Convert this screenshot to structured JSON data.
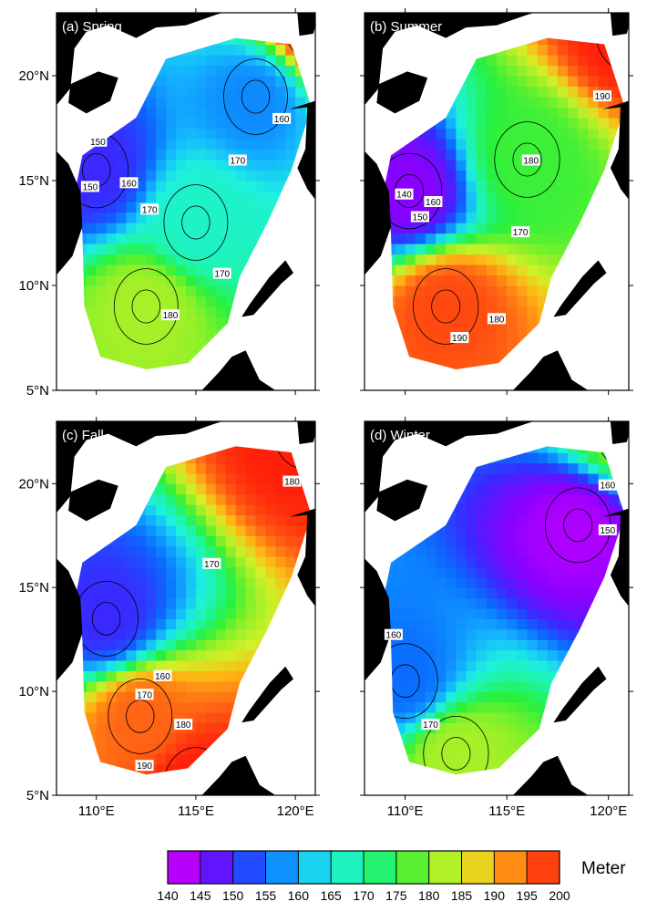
{
  "figure": {
    "units": "Meter",
    "lon_ticks": [
      "110°E",
      "115°E",
      "120°E"
    ],
    "lat_ticks": [
      "20°N",
      "15°N",
      "10°N",
      "5°N"
    ],
    "lon_range": [
      108,
      121
    ],
    "lat_range": [
      5,
      23
    ],
    "colors": {
      "land": "#000000",
      "background": "#ffffff",
      "contour": "#000000"
    }
  },
  "chart_data": {
    "type": "heatmap",
    "x_unit": "degrees east longitude",
    "y_unit": "degrees north latitude",
    "colorbar": {
      "ticks": [
        140,
        145,
        150,
        155,
        160,
        165,
        170,
        175,
        180,
        185,
        190,
        195,
        200
      ],
      "range": [
        140,
        200
      ],
      "label": "Meter",
      "colors": [
        "#e600ff",
        "#8a00ff",
        "#3a28ff",
        "#0a6cff",
        "#14b4ff",
        "#1ef0e0",
        "#1ef5a0",
        "#28f03c",
        "#8cf028",
        "#d2f028",
        "#ffb414",
        "#ff6414",
        "#ff1e0a"
      ]
    },
    "panels": [
      {
        "title": "(a) Spring",
        "contour_labels": [
          "150",
          "160",
          "170",
          "180",
          "160",
          "170",
          "170",
          "150"
        ],
        "features": [
          {
            "lon": 115.0,
            "lat": 13.0,
            "value": 167
          },
          {
            "lon": 118.0,
            "lat": 19.0,
            "value": 157
          },
          {
            "lon": 112.5,
            "lat": 9.0,
            "value": 182
          },
          {
            "lon": 110.0,
            "lat": 15.5,
            "value": 150
          },
          {
            "lon": 121.0,
            "lat": 22.5,
            "value": 200
          }
        ]
      },
      {
        "title": "(b) Summer",
        "contour_labels": [
          "190",
          "180",
          "160",
          "150",
          "140",
          "170",
          "180",
          "190"
        ],
        "features": [
          {
            "lon": 112.0,
            "lat": 9.0,
            "value": 197
          },
          {
            "lon": 110.2,
            "lat": 14.5,
            "value": 145
          },
          {
            "lon": 121.0,
            "lat": 22.0,
            "value": 200
          },
          {
            "lon": 116.0,
            "lat": 16.0,
            "value": 176
          }
        ]
      },
      {
        "title": "(c) Fall",
        "contour_labels": [
          "170",
          "180",
          "160",
          "170",
          "180",
          "190"
        ],
        "features": [
          {
            "lon": 110.5,
            "lat": 13.5,
            "value": 150
          },
          {
            "lon": 112.2,
            "lat": 8.8,
            "value": 195
          },
          {
            "lon": 115.0,
            "lat": 5.5,
            "value": 200
          },
          {
            "lon": 120.5,
            "lat": 22.5,
            "value": 200
          }
        ]
      },
      {
        "title": "(d) Winter",
        "contour_labels": [
          "160",
          "150",
          "160",
          "170"
        ],
        "features": [
          {
            "lon": 118.5,
            "lat": 18.0,
            "value": 143
          },
          {
            "lon": 110.0,
            "lat": 10.5,
            "value": 155
          },
          {
            "lon": 112.5,
            "lat": 7.0,
            "value": 182
          },
          {
            "lon": 121.0,
            "lat": 22.5,
            "value": 180
          }
        ]
      }
    ]
  }
}
